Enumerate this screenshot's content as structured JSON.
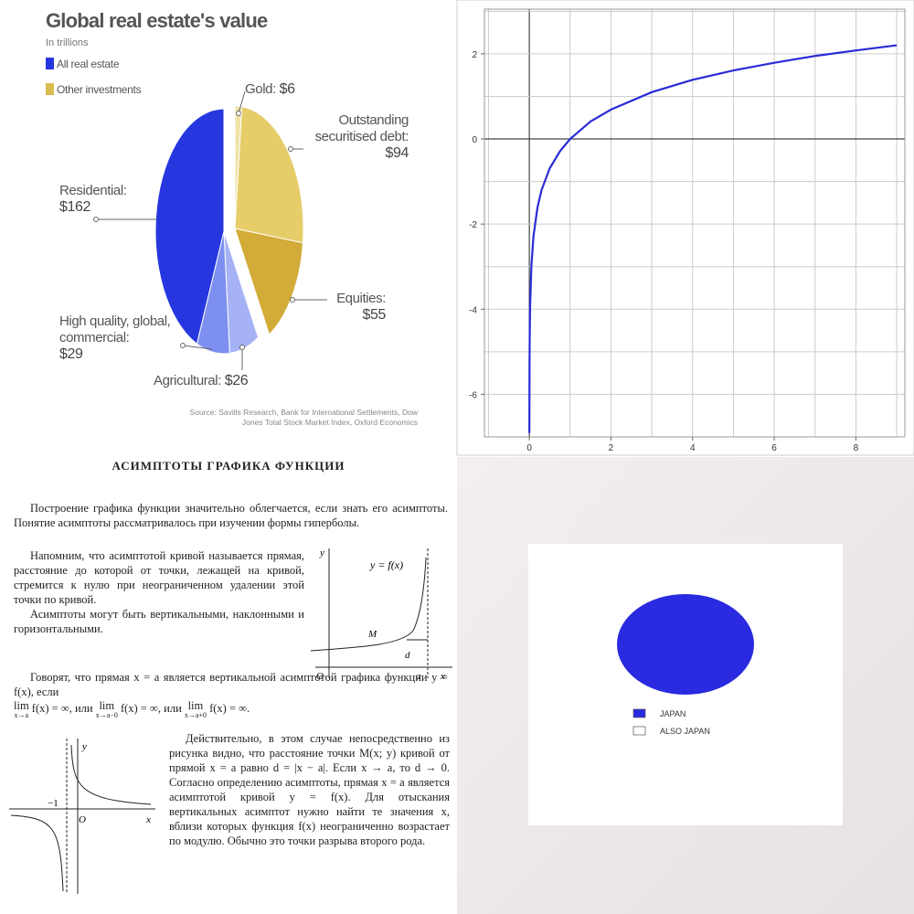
{
  "chart_data": [
    {
      "type": "pie",
      "title": "Global real estate's value",
      "subtitle": "In trillions",
      "series": [
        {
          "name": "All real estate",
          "color": "#2637e0",
          "categories": [
            "Agricultural:",
            "High quality, global, commercial:",
            "Residential:"
          ],
          "values": [
            26,
            29,
            162
          ],
          "value_labels": [
            "$26",
            "$29",
            "$162"
          ],
          "colors": [
            "#a5b2f6",
            "#7d8ff0",
            "#2637e0"
          ]
        },
        {
          "name": "Other investments",
          "color": "#d9bc4e",
          "categories": [
            "Gold:",
            "Outstanding securitised debt:",
            "Equities:"
          ],
          "values": [
            6,
            94,
            55
          ],
          "value_labels": [
            "$6",
            "$94",
            "$55"
          ],
          "colors": [
            "#efe3a8",
            "#e6cd6a",
            "#d2ab38"
          ]
        }
      ],
      "source": "Source: Savills Research, Bank for International Settlements, Dow Jones Total Stock Market Index, Oxford Economics"
    },
    {
      "type": "line",
      "color": "#2b2bd6",
      "x": [
        0.001,
        0.005,
        0.01,
        0.02,
        0.05,
        0.1,
        0.2,
        0.3,
        0.5,
        0.75,
        1,
        1.5,
        2,
        3,
        4,
        5,
        6,
        7,
        8,
        9
      ],
      "values": [
        -6.91,
        -5.3,
        -4.61,
        -3.91,
        -3.0,
        -2.3,
        -1.61,
        -1.2,
        -0.69,
        -0.29,
        0,
        0.41,
        0.69,
        1.1,
        1.39,
        1.61,
        1.79,
        1.95,
        2.08,
        2.2
      ],
      "xlim": [
        -1.1,
        9.2
      ],
      "ylim": [
        -7,
        3.05
      ],
      "xticks": [
        0,
        2,
        4,
        6,
        8
      ],
      "yticks": [
        -6,
        -4,
        -2,
        0,
        2
      ],
      "xgrid": [
        -1,
        0,
        1,
        2,
        3,
        4,
        5,
        6,
        7,
        8,
        9
      ],
      "ygrid": [
        -7,
        -6,
        -5,
        -4,
        -3,
        -2,
        -1,
        0,
        1,
        2,
        3
      ],
      "grid": true
    },
    {
      "type": "pie",
      "categories": [
        "JAPAN",
        "ALSO JAPAN"
      ],
      "values": [
        100,
        0
      ],
      "colors": [
        "#2a2ae0",
        "#ffffff"
      ],
      "legend": "bottom"
    }
  ],
  "document": {
    "title": "АСИМПТОТЫ ГРАФИКА ФУНКЦИИ",
    "paragraphs": [
      "Построение графика функции значительно облегчается, если знать его асимптоты. Понятие асимптоты рассматривалось при изучении формы гиперболы.",
      "Напомним, что асимптотой кривой называется прямая, расстояние до которой от точки, лежащей на кривой, стремится к нулю при неограниченном удалении этой точки по кривой.",
      "Асимптоты могут быть вертикальными, наклонными и горизонтальными.",
      "Говорят, что прямая x = a является вертикальной асимптотой графика функции y = f(x), если"
    ],
    "limits": [
      {
        "op": "lim",
        "sub": "x→a",
        "expr": "f(x) = ∞, или"
      },
      {
        "op": "lim",
        "sub": "x→a−0",
        "expr": "f(x) = ∞, или"
      },
      {
        "op": "lim",
        "sub": "x→a+0",
        "expr": "f(x) = ∞."
      }
    ],
    "paragraph_right": "Действительно, в этом случае непосредственно из рисунка видно, что расстояние точки M(x; y) кривой от прямой x = a равно d = |x − a|. Если x → a, то d → 0. Согласно определению асимптоты, прямая x = a является асимптотой кривой y = f(x). Для отыскания вертикальных асимптот нужно найти те значения x, вблизи которых функция f(x) неограниченно возрастает по модулю. Обычно это точки разрыва второго рода.",
    "figure1": [
      "y",
      "y = f(x)",
      "M",
      "d",
      "O",
      "a",
      "x"
    ],
    "figure2": [
      "y",
      "−1",
      "O",
      "x"
    ]
  }
}
